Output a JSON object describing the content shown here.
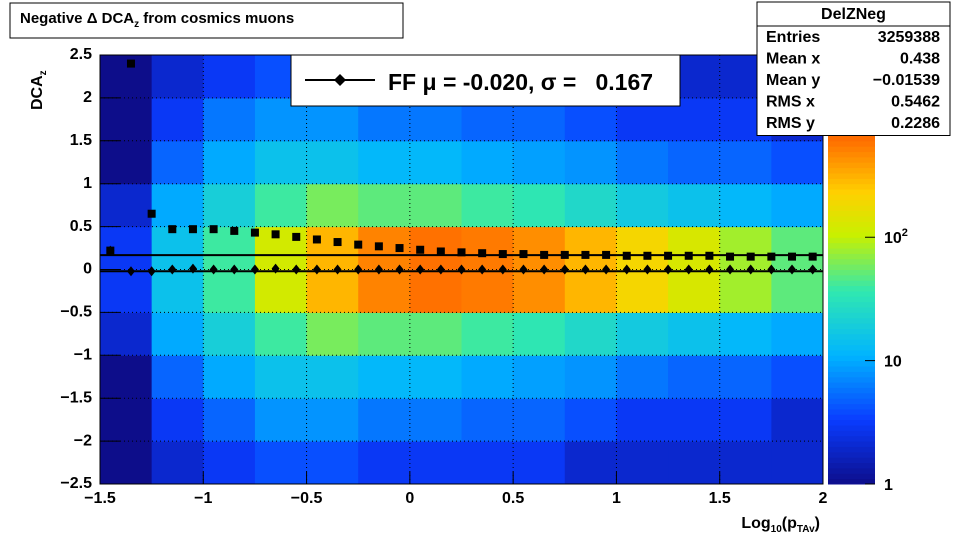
{
  "chart_data": {
    "type": "heatmap",
    "title": [
      {
        "text": "Negative Δ DCA"
      },
      {
        "text": "z",
        "sub": true
      },
      {
        "text": " from cosmics muons"
      }
    ],
    "xlabel": [
      {
        "text": "Log"
      },
      {
        "text": "10",
        "sub": true
      },
      {
        "text": "(p"
      },
      {
        "text": "TAv",
        "sub": true
      },
      {
        "text": ")"
      }
    ],
    "ylabel": [
      {
        "text": "DCA"
      },
      {
        "text": "z",
        "sub": true
      }
    ],
    "xlim": [
      -1.5,
      2
    ],
    "ylim": [
      -2.5,
      2.5
    ],
    "xticks": [
      {
        "value": -1.5,
        "label": "−1.5"
      },
      {
        "value": -1,
        "label": "−1"
      },
      {
        "value": -0.5,
        "label": "−0.5"
      },
      0,
      0.5,
      1,
      1.5,
      2
    ],
    "yticks": [
      {
        "value": -2.5,
        "label": "−2.5"
      },
      {
        "value": -2,
        "label": "−2"
      },
      {
        "value": -1.5,
        "label": "−1.5"
      },
      {
        "value": -1,
        "label": "−1"
      },
      {
        "value": -0.5,
        "label": "−0.5"
      },
      0,
      0.5,
      1,
      1.5,
      2,
      2.5
    ],
    "grid": true,
    "log_z": true,
    "zlim": [
      1,
      3000
    ],
    "zticks": [
      1,
      10,
      {
        "value": 100,
        "label": "10",
        "exponent": "2"
      }
    ],
    "xbins": [
      -1.5,
      -1.25,
      -1,
      -0.75,
      -0.5,
      -0.25,
      0,
      0.25,
      0.5,
      0.75,
      1,
      1.25,
      1.5,
      1.75,
      2
    ],
    "ybins": [
      -2.5,
      -2,
      -1.5,
      -1,
      -0.5,
      0,
      0.5,
      1,
      1.5,
      2,
      2.5
    ],
    "z": [
      [
        1,
        2,
        3,
        4,
        4,
        3,
        3,
        3,
        3,
        2,
        2,
        2,
        2,
        2
      ],
      [
        1,
        3,
        5,
        8,
        8,
        6,
        6,
        5,
        5,
        4,
        3,
        3,
        3,
        2
      ],
      [
        1,
        5,
        10,
        15,
        15,
        12,
        12,
        10,
        9,
        8,
        6,
        5,
        5,
        4
      ],
      [
        2,
        10,
        20,
        40,
        60,
        50,
        50,
        40,
        35,
        25,
        18,
        15,
        12,
        10
      ],
      [
        3,
        15,
        40,
        120,
        300,
        500,
        600,
        550,
        450,
        300,
        200,
        130,
        80,
        50
      ],
      [
        3,
        15,
        40,
        120,
        300,
        500,
        600,
        550,
        450,
        300,
        200,
        130,
        80,
        50
      ],
      [
        2,
        10,
        20,
        40,
        60,
        50,
        50,
        40,
        35,
        25,
        18,
        15,
        12,
        10
      ],
      [
        1,
        5,
        10,
        15,
        15,
        12,
        12,
        10,
        9,
        8,
        6,
        5,
        5,
        4
      ],
      [
        1,
        3,
        6,
        8,
        8,
        6,
        6,
        5,
        5,
        4,
        3,
        3,
        3,
        2
      ],
      [
        1,
        2,
        3,
        4,
        4,
        3,
        3,
        3,
        3,
        2,
        2,
        2,
        2,
        2
      ]
    ],
    "x": [
      -1.45,
      -1.35,
      -1.25,
      -1.15,
      -1.05,
      -0.95,
      -0.85,
      -0.75,
      -0.65,
      -0.55,
      -0.45,
      -0.35,
      -0.25,
      -0.15,
      -0.05,
      0.05,
      0.15,
      0.25,
      0.35,
      0.45,
      0.55,
      0.65,
      0.75,
      0.85,
      0.95,
      1.05,
      1.15,
      1.25,
      1.35,
      1.45,
      1.55,
      1.65,
      1.75,
      1.85,
      1.95
    ],
    "series": [
      {
        "marker": "square",
        "color": "#000000",
        "values": [
          0.22,
          2.4,
          0.65,
          0.47,
          0.47,
          0.47,
          0.45,
          0.43,
          0.41,
          0.38,
          0.35,
          0.32,
          0.29,
          0.27,
          0.25,
          0.23,
          0.21,
          0.2,
          0.19,
          0.18,
          0.18,
          0.17,
          0.17,
          0.17,
          0.17,
          0.16,
          0.16,
          0.16,
          0.16,
          0.16,
          0.15,
          0.15,
          0.15,
          0.15,
          0.15
        ]
      },
      {
        "marker": "diamond",
        "color": "#000000",
        "values": [
          0.22,
          -0.02,
          -0.02,
          0.0,
          0.01,
          0.0,
          0.0,
          0.0,
          0.01,
          0.0,
          0.0,
          0.0,
          0.0,
          0.0,
          0.0,
          0.0,
          0.0,
          0.0,
          0.0,
          0.0,
          0.0,
          0.0,
          0.0,
          0.0,
          0.0,
          0.0,
          0.0,
          0.0,
          0.0,
          0.0,
          0.0,
          0.0,
          0.0,
          0.0,
          0.0
        ]
      }
    ],
    "hlines": [
      0.167,
      -0.02
    ],
    "legend": {
      "text": "FF μ = -0.020, σ =   0.167"
    },
    "stats": {
      "title": "DelZNeg",
      "rows": [
        [
          "Entries",
          "3259388"
        ],
        [
          "Mean x",
          "0.438"
        ],
        [
          "Mean y",
          "−0.01539"
        ],
        [
          "RMS x",
          "0.5462"
        ],
        [
          "RMS y",
          "0.2286"
        ]
      ]
    }
  }
}
